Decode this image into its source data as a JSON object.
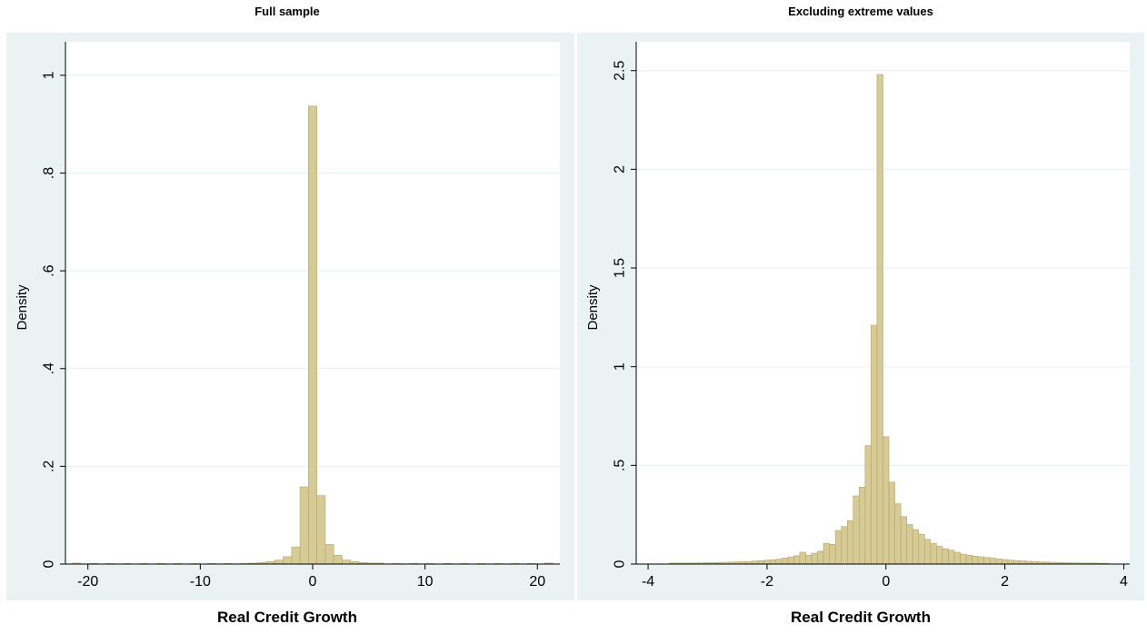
{
  "chart_data": [
    {
      "type": "bar",
      "title": "Full sample",
      "xlabel": "Real Credit Growth",
      "ylabel": "Density",
      "xlim": [
        -22,
        22
      ],
      "ylim": [
        0,
        1.05
      ],
      "xticks": [
        -20,
        -10,
        0,
        10,
        20
      ],
      "xtick_labels": [
        "-20",
        "-10",
        "0",
        "10",
        "20"
      ],
      "yticks": [
        0,
        0.2,
        0.4,
        0.6,
        0.8,
        1
      ],
      "ytick_labels": [
        "0",
        ".2",
        ".4",
        ".6",
        ".8",
        "1"
      ],
      "grid": true,
      "bar_color": "#d6ca95",
      "bar_edge_color": "#b7a46a",
      "bin_width": 0.75,
      "bins": [
        {
          "x": -21,
          "y": 0.002
        },
        {
          "x": -19.5,
          "y": 0.001
        },
        {
          "x": -18,
          "y": 0.001
        },
        {
          "x": -16.5,
          "y": 0.001
        },
        {
          "x": -15,
          "y": 0.001
        },
        {
          "x": -13.5,
          "y": 0.001
        },
        {
          "x": -12,
          "y": 0.001
        },
        {
          "x": -10.5,
          "y": 0.001
        },
        {
          "x": -9,
          "y": 0.001
        },
        {
          "x": -7.5,
          "y": 0.001
        },
        {
          "x": -6,
          "y": 0.001
        },
        {
          "x": -5.25,
          "y": 0.002
        },
        {
          "x": -4.5,
          "y": 0.003
        },
        {
          "x": -3.75,
          "y": 0.005
        },
        {
          "x": -3,
          "y": 0.008
        },
        {
          "x": -2.25,
          "y": 0.015
        },
        {
          "x": -1.5,
          "y": 0.035
        },
        {
          "x": -0.75,
          "y": 0.158
        },
        {
          "x": 0,
          "y": 0.937
        },
        {
          "x": 0.75,
          "y": 0.14
        },
        {
          "x": 1.5,
          "y": 0.04
        },
        {
          "x": 2.25,
          "y": 0.018
        },
        {
          "x": 3,
          "y": 0.008
        },
        {
          "x": 3.75,
          "y": 0.005
        },
        {
          "x": 4.5,
          "y": 0.003
        },
        {
          "x": 5.25,
          "y": 0.002
        },
        {
          "x": 6,
          "y": 0.002
        },
        {
          "x": 7.5,
          "y": 0.001
        },
        {
          "x": 9,
          "y": 0.001
        },
        {
          "x": 10.5,
          "y": 0.001
        },
        {
          "x": 12,
          "y": 0.001
        },
        {
          "x": 13.5,
          "y": 0.001
        },
        {
          "x": 15,
          "y": 0.001
        },
        {
          "x": 16.5,
          "y": 0.001
        },
        {
          "x": 18,
          "y": 0.001
        },
        {
          "x": 19.5,
          "y": 0.001
        },
        {
          "x": 21,
          "y": 0.002
        }
      ]
    },
    {
      "type": "bar",
      "title": "Excluding extreme values",
      "xlabel": "Real Credit Growth",
      "ylabel": "Density",
      "xlim": [
        -4.2,
        4.1
      ],
      "ylim": [
        0,
        2.6
      ],
      "xticks": [
        -4,
        -2,
        0,
        2,
        4
      ],
      "xtick_labels": [
        "-4",
        "-2",
        "0",
        "2",
        "4"
      ],
      "yticks": [
        0,
        0.5,
        1,
        1.5,
        2,
        2.5
      ],
      "ytick_labels": [
        "0",
        ".5",
        "1",
        "1.5",
        "2",
        "2.5"
      ],
      "grid": true,
      "bar_color": "#d6ca95",
      "bar_edge_color": "#b7a46a",
      "bin_width": 0.1,
      "bins": [
        {
          "x": -3.6,
          "y": 0.005
        },
        {
          "x": -3.5,
          "y": 0.005
        },
        {
          "x": -3.4,
          "y": 0.005
        },
        {
          "x": -3.3,
          "y": 0.005
        },
        {
          "x": -3.2,
          "y": 0.006
        },
        {
          "x": -3.1,
          "y": 0.006
        },
        {
          "x": -3.0,
          "y": 0.007
        },
        {
          "x": -2.9,
          "y": 0.007
        },
        {
          "x": -2.8,
          "y": 0.008
        },
        {
          "x": -2.7,
          "y": 0.009
        },
        {
          "x": -2.6,
          "y": 0.01
        },
        {
          "x": -2.5,
          "y": 0.011
        },
        {
          "x": -2.4,
          "y": 0.012
        },
        {
          "x": -2.3,
          "y": 0.013
        },
        {
          "x": -2.2,
          "y": 0.015
        },
        {
          "x": -2.1,
          "y": 0.017
        },
        {
          "x": -2.0,
          "y": 0.02
        },
        {
          "x": -1.9,
          "y": 0.022
        },
        {
          "x": -1.8,
          "y": 0.025
        },
        {
          "x": -1.7,
          "y": 0.03
        },
        {
          "x": -1.6,
          "y": 0.036
        },
        {
          "x": -1.5,
          "y": 0.042
        },
        {
          "x": -1.4,
          "y": 0.06
        },
        {
          "x": -1.3,
          "y": 0.045
        },
        {
          "x": -1.2,
          "y": 0.055
        },
        {
          "x": -1.1,
          "y": 0.065
        },
        {
          "x": -1.0,
          "y": 0.105
        },
        {
          "x": -0.9,
          "y": 0.1
        },
        {
          "x": -0.8,
          "y": 0.17
        },
        {
          "x": -0.7,
          "y": 0.19
        },
        {
          "x": -0.6,
          "y": 0.22
        },
        {
          "x": -0.5,
          "y": 0.345
        },
        {
          "x": -0.4,
          "y": 0.39
        },
        {
          "x": -0.3,
          "y": 0.6
        },
        {
          "x": -0.2,
          "y": 1.21
        },
        {
          "x": -0.1,
          "y": 2.48
        },
        {
          "x": 0.0,
          "y": 0.645
        },
        {
          "x": 0.1,
          "y": 0.415
        },
        {
          "x": 0.2,
          "y": 0.305
        },
        {
          "x": 0.3,
          "y": 0.24
        },
        {
          "x": 0.4,
          "y": 0.2
        },
        {
          "x": 0.5,
          "y": 0.175
        },
        {
          "x": 0.6,
          "y": 0.15
        },
        {
          "x": 0.7,
          "y": 0.125
        },
        {
          "x": 0.8,
          "y": 0.105
        },
        {
          "x": 0.9,
          "y": 0.09
        },
        {
          "x": 1.0,
          "y": 0.078
        },
        {
          "x": 1.1,
          "y": 0.07
        },
        {
          "x": 1.2,
          "y": 0.06
        },
        {
          "x": 1.3,
          "y": 0.05
        },
        {
          "x": 1.4,
          "y": 0.045
        },
        {
          "x": 1.5,
          "y": 0.04
        },
        {
          "x": 1.6,
          "y": 0.037
        },
        {
          "x": 1.7,
          "y": 0.033
        },
        {
          "x": 1.8,
          "y": 0.03
        },
        {
          "x": 1.9,
          "y": 0.026
        },
        {
          "x": 2.0,
          "y": 0.023
        },
        {
          "x": 2.1,
          "y": 0.02
        },
        {
          "x": 2.2,
          "y": 0.018
        },
        {
          "x": 2.3,
          "y": 0.016
        },
        {
          "x": 2.4,
          "y": 0.014
        },
        {
          "x": 2.5,
          "y": 0.012
        },
        {
          "x": 2.6,
          "y": 0.011
        },
        {
          "x": 2.7,
          "y": 0.01
        },
        {
          "x": 2.8,
          "y": 0.009
        },
        {
          "x": 2.9,
          "y": 0.008
        },
        {
          "x": 3.0,
          "y": 0.007
        },
        {
          "x": 3.1,
          "y": 0.006
        },
        {
          "x": 3.2,
          "y": 0.006
        },
        {
          "x": 3.3,
          "y": 0.005
        },
        {
          "x": 3.4,
          "y": 0.005
        },
        {
          "x": 3.5,
          "y": 0.005
        },
        {
          "x": 3.6,
          "y": 0.004
        },
        {
          "x": 3.7,
          "y": 0.004
        }
      ]
    }
  ]
}
